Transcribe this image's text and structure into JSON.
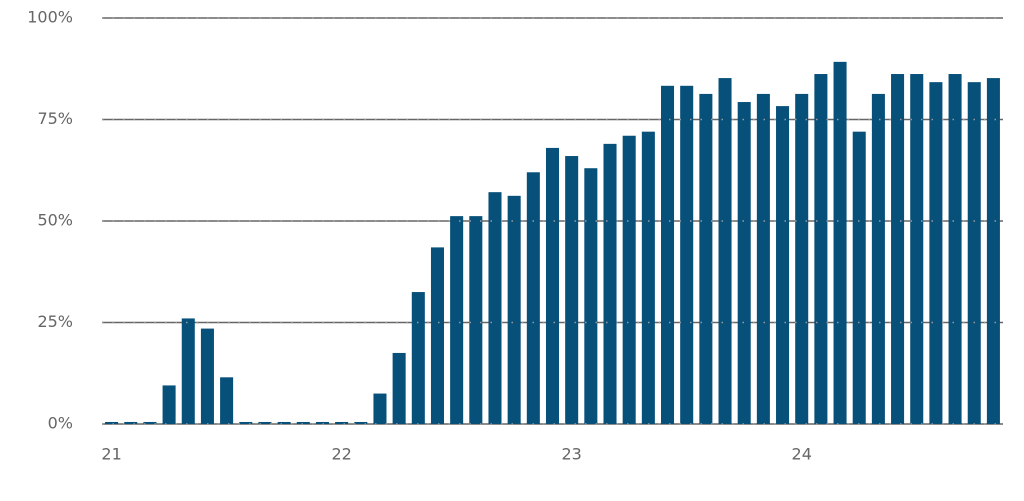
{
  "chart_data": {
    "type": "bar",
    "categories": [
      "21",
      null,
      null,
      null,
      null,
      null,
      null,
      null,
      null,
      null,
      null,
      null,
      "22",
      null,
      null,
      null,
      null,
      null,
      null,
      null,
      null,
      null,
      null,
      null,
      "23",
      null,
      null,
      null,
      null,
      null,
      null,
      null,
      null,
      null,
      null,
      null,
      "24",
      null,
      null,
      null,
      null,
      null,
      null,
      null,
      null,
      null,
      null
    ],
    "values": [
      0.5,
      0.5,
      0.5,
      9.5,
      26,
      23.5,
      11.5,
      0.5,
      0.5,
      0.5,
      0.5,
      0.5,
      0.5,
      0.5,
      7.5,
      17.5,
      32.5,
      43.5,
      51.2,
      51.2,
      57.1,
      56.2,
      62,
      68,
      66,
      63,
      69,
      71,
      72,
      83.3,
      83.3,
      81.3,
      85.2,
      79.3,
      81.3,
      78.3,
      81.3,
      86.2,
      89.2,
      72,
      81.3,
      86.2,
      86.2,
      84.2,
      86.2,
      84.2,
      85.2
    ],
    "color": "#06507a",
    "ylim": [
      0,
      100
    ],
    "yticks": [
      {
        "value": 0,
        "label": "0%"
      },
      {
        "value": 25,
        "label": "25%"
      },
      {
        "value": 50,
        "label": "50%"
      },
      {
        "value": 75,
        "label": "75%"
      },
      {
        "value": 100,
        "label": "100%"
      }
    ],
    "grid": true
  }
}
